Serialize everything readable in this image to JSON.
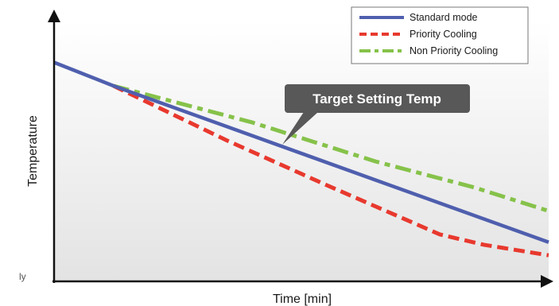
{
  "chart_data": {
    "type": "line",
    "title": "",
    "xlabel": "Time [min]",
    "ylabel": "Temperature",
    "x_ticks": "none",
    "y_ticks": "none",
    "grid": false,
    "legend_position": "top-right",
    "annotation": "Target Setting Temp",
    "x_range": [
      0,
      100
    ],
    "y_range": [
      0,
      100
    ],
    "series": [
      {
        "name": "Standard mode",
        "color": "#4f5fae",
        "style": "solid",
        "points": [
          [
            0,
            84
          ],
          [
            12,
            75
          ],
          [
            100,
            15
          ]
        ]
      },
      {
        "name": "Priority Cooling",
        "color": "#e8392e",
        "style": "dashed",
        "points": [
          [
            12,
            75
          ],
          [
            35,
            54
          ],
          [
            55,
            37
          ],
          [
            78,
            18
          ],
          [
            87,
            14
          ],
          [
            100,
            10
          ]
        ]
      },
      {
        "name": "Non Priority Cooling",
        "color": "#86c24a",
        "style": "dash-dot",
        "points": [
          [
            12,
            75
          ],
          [
            40,
            61
          ],
          [
            65,
            46
          ],
          [
            85,
            36
          ],
          [
            100,
            27
          ]
        ]
      }
    ]
  },
  "fragment_left_text": "ly"
}
